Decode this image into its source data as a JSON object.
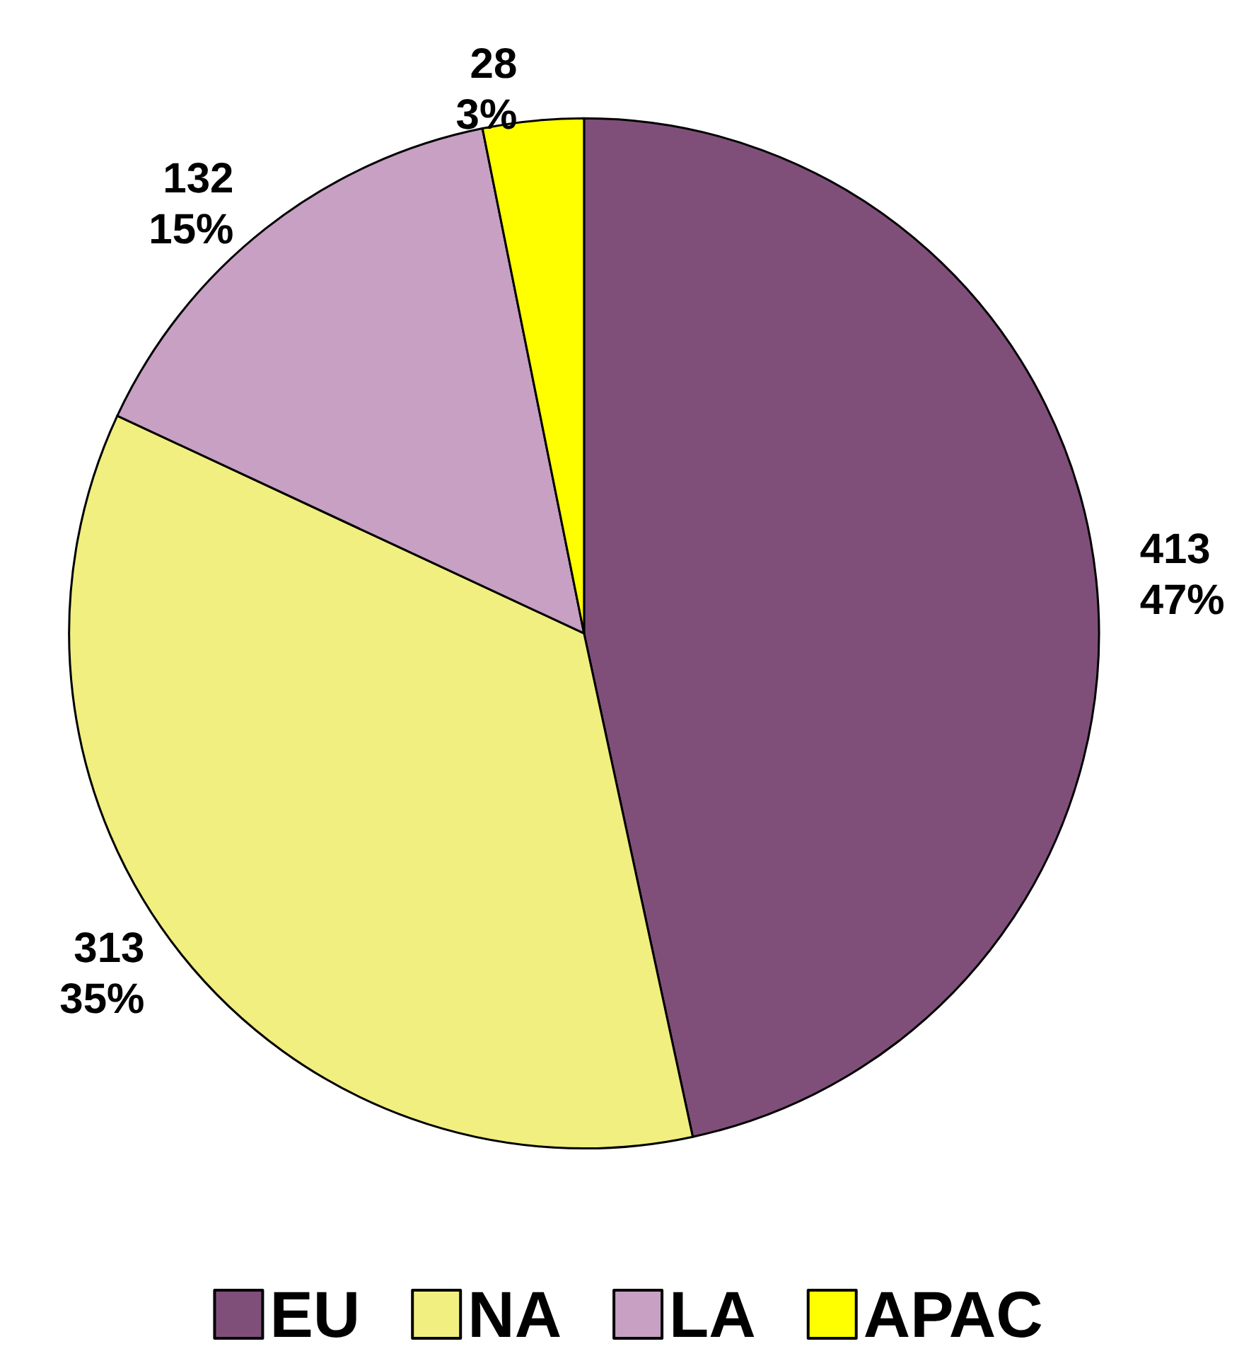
{
  "chart_data": {
    "type": "pie",
    "categories": [
      "EU",
      "NA",
      "LA",
      "APAC"
    ],
    "values": [
      413,
      313,
      132,
      28
    ],
    "colors": [
      "#7f4f7a",
      "#f0ef80",
      "#c7a0c3",
      "#ffff00"
    ],
    "value_labels": [
      "413\n47%",
      "313\n35%",
      "132\n15%",
      "28\n3%"
    ],
    "legend": "bottom"
  }
}
